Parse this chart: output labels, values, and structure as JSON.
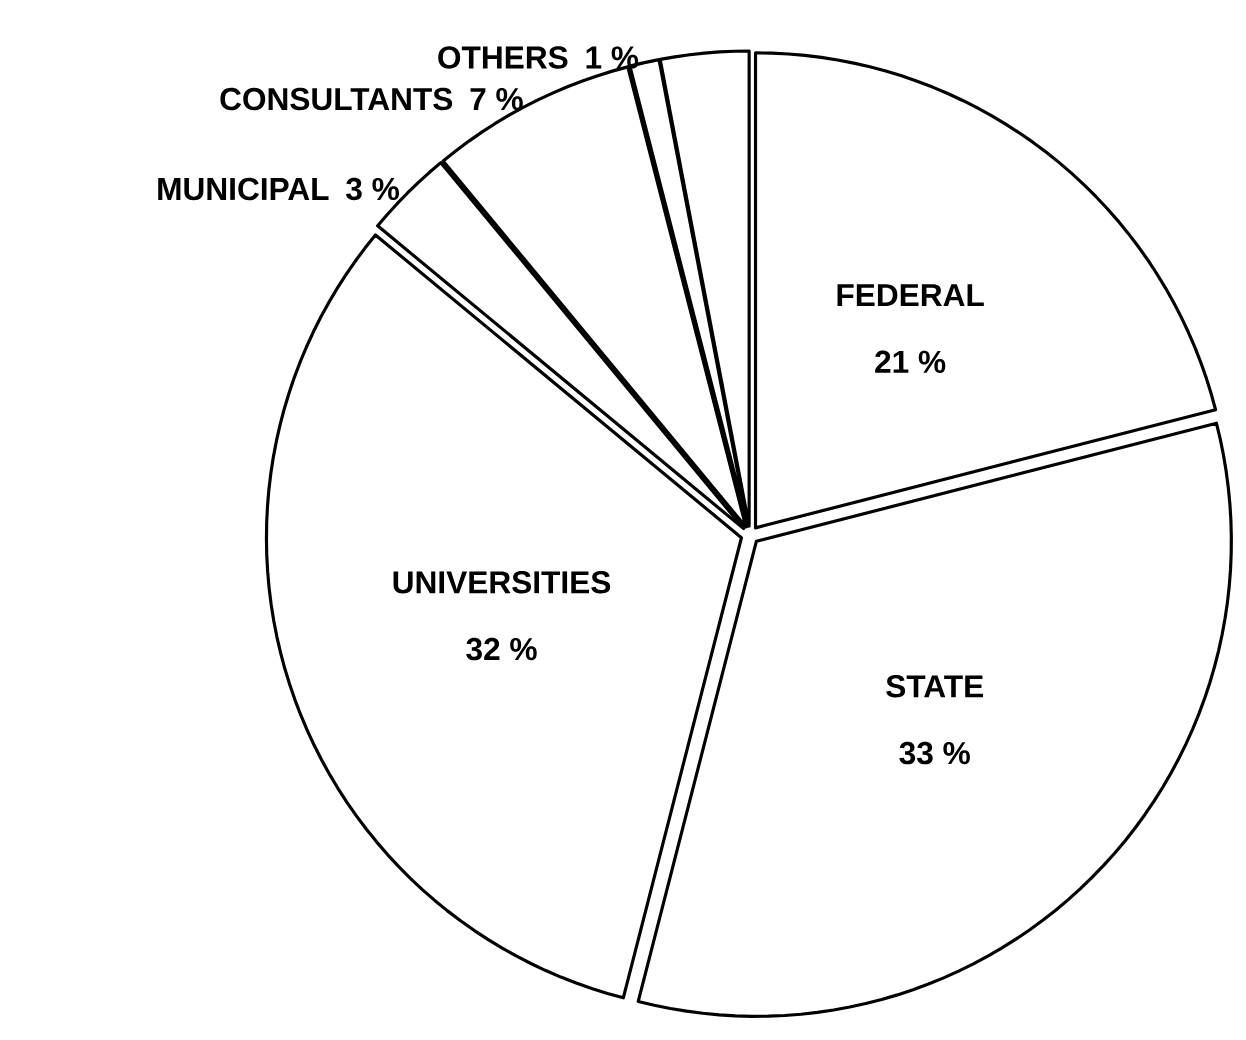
{
  "chart_data": {
    "type": "pie",
    "categories": [
      "FEDERAL",
      "STATE",
      "UNIVERSITIES",
      "MUNICIPAL",
      "CONSULTANTS",
      "OTHERS",
      null
    ],
    "values": [
      21,
      33,
      32,
      3,
      7,
      1,
      3
    ],
    "value_labels": [
      "21 %",
      "33 %",
      "32 %",
      "3 %",
      "7 %",
      "1 %",
      null
    ],
    "colors": [
      "#ffffff",
      "#ffffff",
      "#ffffff",
      "#ffffff",
      "#ffffff",
      "#ffffff",
      "#ffffff"
    ],
    "legend": false
  }
}
